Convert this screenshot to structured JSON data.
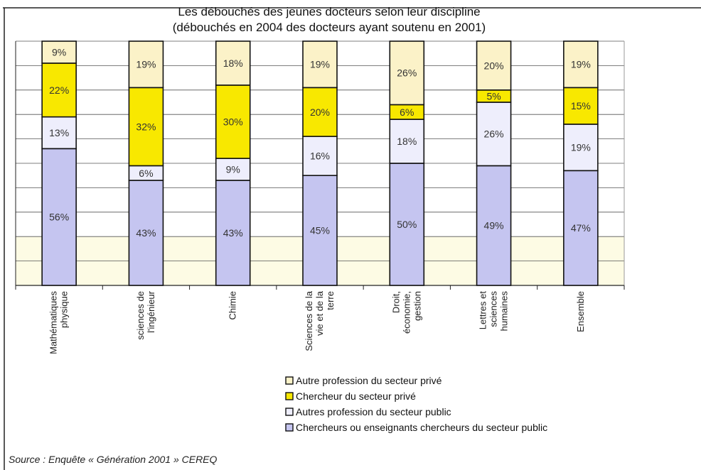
{
  "chart_data": {
    "type": "bar",
    "stacked": true,
    "title": "Les débouchés des jeunes docteurs selon leur discipline",
    "subtitle": "(débouchés en 2004 des docteurs ayant soutenu en 2001)",
    "categories": [
      [
        "Mathématiques",
        "physique"
      ],
      [
        "sciences de",
        "l'ingénieur"
      ],
      [
        "Chimie"
      ],
      [
        "Sciences de la",
        "vie et de la",
        "terre"
      ],
      [
        "Droit,",
        "économie,",
        "gestion"
      ],
      [
        "Lettres et",
        "sciences",
        "humaines"
      ],
      [
        "Ensemble"
      ]
    ],
    "series": [
      {
        "name": "Chercheurs ou enseignants chercheurs du secteur public",
        "color": "#c5c5f0",
        "values": [
          56,
          43,
          43,
          45,
          50,
          49,
          47
        ],
        "labels": [
          "56%",
          "43%",
          "43%",
          "45%",
          "50%",
          "49%",
          "47%"
        ]
      },
      {
        "name": "Autres profession du secteur public",
        "color": "#eeeefc",
        "values": [
          13,
          6,
          9,
          16,
          18,
          26,
          19
        ],
        "labels": [
          "13%",
          "6%",
          "9%",
          "16%",
          "18%",
          "26%",
          "19%"
        ]
      },
      {
        "name": "Chercheur du secteur privé",
        "color": "#f8e800",
        "values": [
          22,
          32,
          30,
          20,
          6,
          5,
          15
        ],
        "labels": [
          "22%",
          "32%",
          "30%",
          "20%",
          "6%",
          "5%",
          "15%"
        ]
      },
      {
        "name": "Autre profession du secteur privé",
        "color": "#fbf2c8",
        "values": [
          9,
          19,
          18,
          19,
          26,
          20,
          19
        ],
        "labels": [
          "9%",
          "19%",
          "18%",
          "19%",
          "26%",
          "20%",
          "19%"
        ]
      }
    ],
    "ylim": [
      0,
      100
    ],
    "grid": true,
    "legend_position": "bottom",
    "legend_order": [
      "Autre profession du secteur privé",
      "Chercheur du secteur privé",
      "Autres profession du secteur public",
      "Chercheurs ou enseignants chercheurs du secteur public"
    ],
    "legend_labels": [
      "Autre profession du secteur privé",
      "Chercheur du secteur privé",
      "Autres profession du secteur public",
      "Chercheurs ou enseignants chercheurs du secteur public"
    ],
    "plot_background_bands": [
      "#ffffff",
      "#fdfbe4"
    ]
  },
  "source": "Source : Enquête « Génération 2001 » CEREQ",
  "colors": {
    "grid": "#555555",
    "bar_border": "#111111",
    "plot_band_light": "#fdfbe4"
  }
}
